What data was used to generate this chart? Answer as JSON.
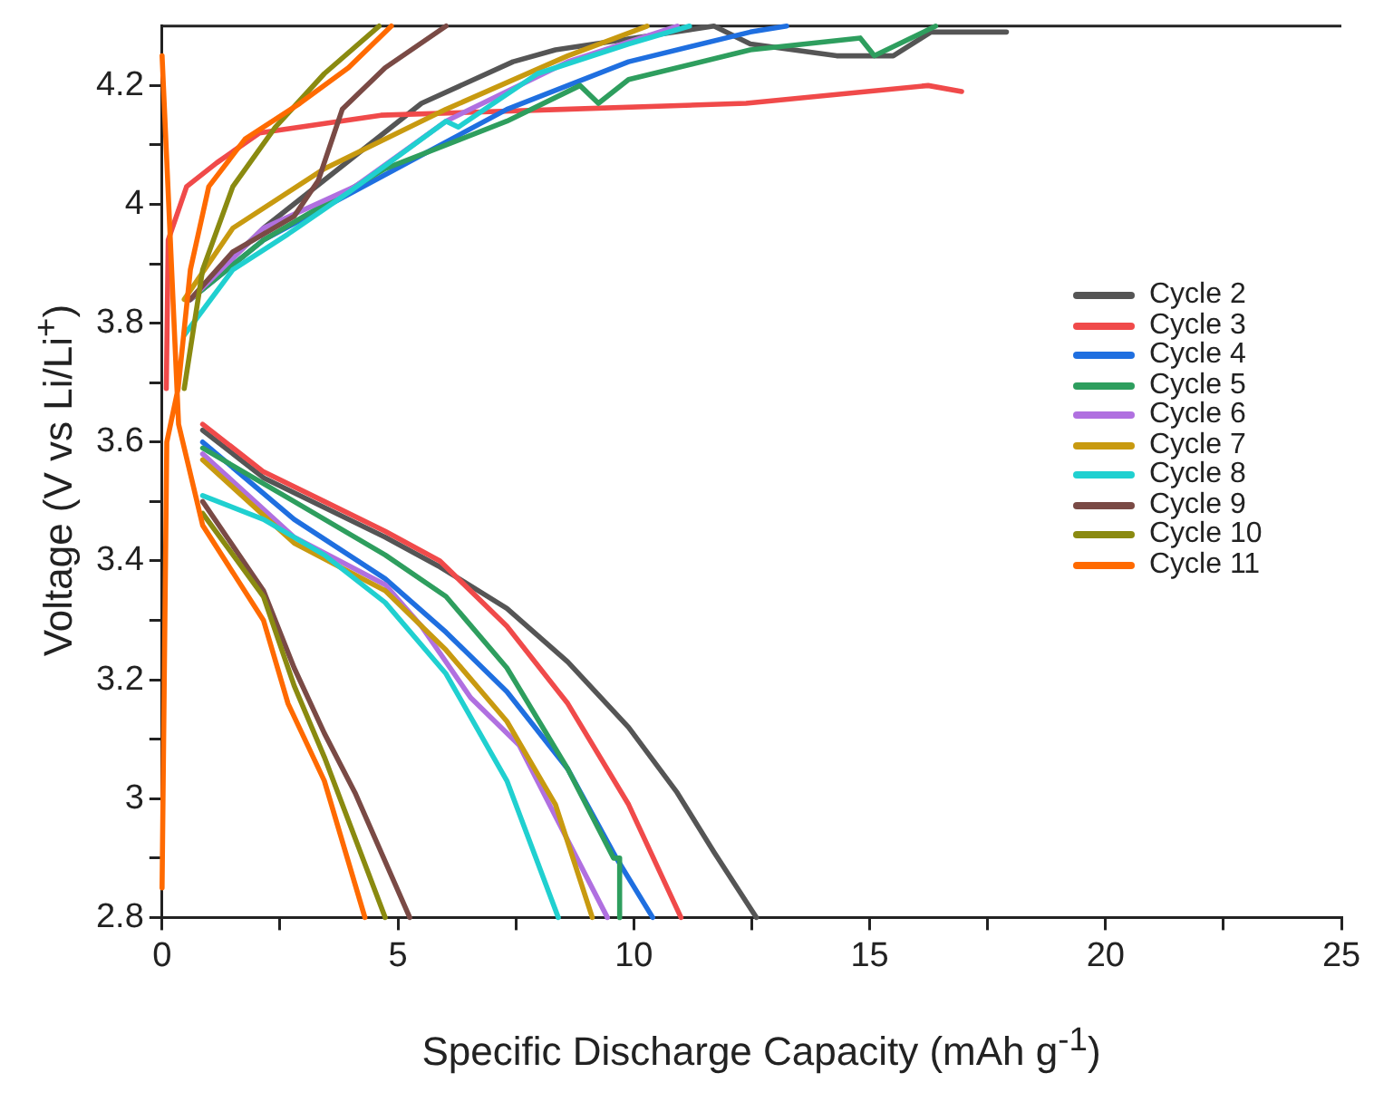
{
  "chart_data": {
    "type": "line",
    "xlabel": "Specific Discharge Capacity (mAh g$^{-1}$)",
    "ylabel": "Voltage (V vs Li/Li$^{+}$)",
    "xlim": [
      0,
      25
    ],
    "ylim": [
      2.8,
      4.3
    ],
    "xticks": [
      0,
      {
        "value": 2.5,
        "label": null
      },
      5,
      {
        "value": 7.5,
        "label": null
      },
      10,
      {
        "value": 12.5,
        "label": null
      },
      15,
      {
        "value": 17.5,
        "label": null
      },
      20,
      {
        "value": 22.5,
        "label": null
      },
      25
    ],
    "yticks": [
      2.8,
      {
        "value": 2.9,
        "label": null
      },
      3.0,
      {
        "value": 3.1,
        "label": null
      },
      3.2,
      {
        "value": 3.3,
        "label": null
      },
      3.4,
      {
        "value": 3.5,
        "label": null
      },
      3.6,
      {
        "value": 3.7,
        "label": null
      },
      3.8,
      {
        "value": 3.9,
        "label": null
      },
      4.0,
      {
        "value": 4.1,
        "label": null
      },
      4.2
    ],
    "legend": "top right",
    "grid": false,
    "marker": "none",
    "line_style": "solid",
    "series": [
      {
        "name": "Cycle 2",
        "color": "#555555",
        "x": [
          0.6,
          2.15,
          5.5,
          7.44,
          8.34,
          11.7,
          12.47,
          14.3,
          15.5,
          16.3,
          17.9,
          null,
          0.86,
          2.15,
          3.44,
          4.73,
          5.89,
          7.31,
          8.6,
          9.89,
          10.92,
          11.7,
          12.6
        ],
        "values": [
          3.84,
          3.96,
          4.17,
          4.24,
          4.26,
          4.3,
          4.27,
          4.25,
          4.25,
          4.29,
          4.29,
          null,
          3.62,
          3.54,
          3.49,
          3.44,
          3.39,
          3.32,
          3.23,
          3.12,
          3.01,
          2.91,
          2.8
        ]
      },
      {
        "name": "Cycle 3",
        "color": "#f04a4a",
        "x": [
          0.09,
          0.13,
          0.52,
          1.16,
          2.06,
          4.64,
          8.51,
          12.38,
          16.24,
          16.95,
          null,
          0.86,
          2.15,
          3.44,
          4.73,
          5.89,
          7.31,
          8.6,
          9.89,
          11.0
        ],
        "values": [
          3.69,
          3.94,
          4.03,
          4.07,
          4.12,
          4.15,
          4.16,
          4.17,
          4.2,
          4.19,
          null,
          3.63,
          3.55,
          3.5,
          3.45,
          3.4,
          3.29,
          3.16,
          2.99,
          2.8
        ]
      },
      {
        "name": "Cycle 4",
        "color": "#1f6fe0",
        "x": [
          0.6,
          2.15,
          4.73,
          7.31,
          9.89,
          12.47,
          13.24,
          null,
          0.86,
          2.8,
          4.73,
          6.02,
          7.31,
          8.6,
          9.63,
          10.4
        ],
        "values": [
          3.84,
          3.94,
          4.05,
          4.16,
          4.24,
          4.29,
          4.3,
          null,
          3.6,
          3.47,
          3.37,
          3.28,
          3.18,
          3.05,
          2.9,
          2.8
        ]
      },
      {
        "name": "Cycle 5",
        "color": "#2e9e5e",
        "x": [
          0.6,
          2.15,
          4.73,
          7.31,
          8.86,
          9.25,
          9.89,
          12.47,
          14.8,
          15.1,
          16.4,
          null,
          0.86,
          2.8,
          4.73,
          6.02,
          7.31,
          8.6,
          9.57,
          9.7,
          9.7
        ],
        "values": [
          3.84,
          3.94,
          4.06,
          4.14,
          4.2,
          4.17,
          4.21,
          4.26,
          4.28,
          4.25,
          4.3,
          null,
          3.59,
          3.5,
          3.41,
          3.34,
          3.22,
          3.05,
          2.9,
          2.9,
          2.8
        ]
      },
      {
        "name": "Cycle 6",
        "color": "#b070e0",
        "x": [
          0.6,
          2.15,
          4.09,
          6.02,
          8.6,
          10.92,
          null,
          0.86,
          2.8,
          4.73,
          5.5,
          6.54,
          7.57,
          8.6,
          9.44
        ],
        "values": [
          3.84,
          3.96,
          4.03,
          4.14,
          4.24,
          4.3,
          null,
          3.58,
          3.44,
          3.36,
          3.29,
          3.17,
          3.09,
          2.93,
          2.8
        ]
      },
      {
        "name": "Cycle 7",
        "color": "#c89a10",
        "x": [
          0.47,
          1.5,
          3.44,
          6.02,
          8.6,
          10.28,
          null,
          0.86,
          2.8,
          4.73,
          6.02,
          7.31,
          8.34,
          9.12
        ],
        "values": [
          3.84,
          3.96,
          4.06,
          4.16,
          4.25,
          4.3,
          null,
          3.57,
          3.43,
          3.35,
          3.25,
          3.13,
          2.99,
          2.8
        ]
      },
      {
        "name": "Cycle 8",
        "color": "#20d0d0",
        "x": [
          0.47,
          1.5,
          2.67,
          3.95,
          6.02,
          6.28,
          7.96,
          9.89,
          11.18,
          null,
          0.86,
          2.15,
          3.44,
          4.73,
          6.02,
          7.31,
          8.4
        ],
        "values": [
          3.78,
          3.89,
          3.95,
          4.02,
          4.14,
          4.13,
          4.22,
          4.27,
          4.3,
          null,
          3.51,
          3.47,
          3.41,
          3.33,
          3.21,
          3.03,
          2.8
        ]
      },
      {
        "name": "Cycle 9",
        "color": "#7a4a45",
        "x": [
          0.6,
          1.5,
          2.8,
          3.31,
          3.82,
          4.73,
          6.02,
          null,
          0.86,
          2.15,
          2.8,
          3.44,
          4.09,
          5.25
        ],
        "values": [
          3.84,
          3.92,
          3.98,
          4.04,
          4.16,
          4.23,
          4.3,
          null,
          3.5,
          3.35,
          3.22,
          3.11,
          3.01,
          2.8
        ]
      },
      {
        "name": "Cycle 10",
        "color": "#8a8a10",
        "x": [
          0.47,
          0.86,
          1.5,
          2.4,
          3.44,
          4.6,
          null,
          0.86,
          2.15,
          2.8,
          3.44,
          4.73
        ],
        "values": [
          3.69,
          3.89,
          4.03,
          4.13,
          4.22,
          4.3,
          null,
          3.48,
          3.34,
          3.19,
          3.07,
          2.8
        ]
      },
      {
        "name": "Cycle 11",
        "color": "#ff6a00",
        "x": [
          0,
          0.1,
          0.34,
          0.6,
          0.99,
          1.76,
          2.92,
          3.95,
          4.86,
          null,
          0,
          0.35,
          0.86,
          2.15,
          2.67,
          3.44,
          4.3
        ],
        "values": [
          2.85,
          3.6,
          3.69,
          3.89,
          4.03,
          4.11,
          4.17,
          4.23,
          4.3,
          null,
          4.25,
          3.63,
          3.46,
          3.3,
          3.16,
          3.03,
          2.8
        ]
      }
    ]
  }
}
